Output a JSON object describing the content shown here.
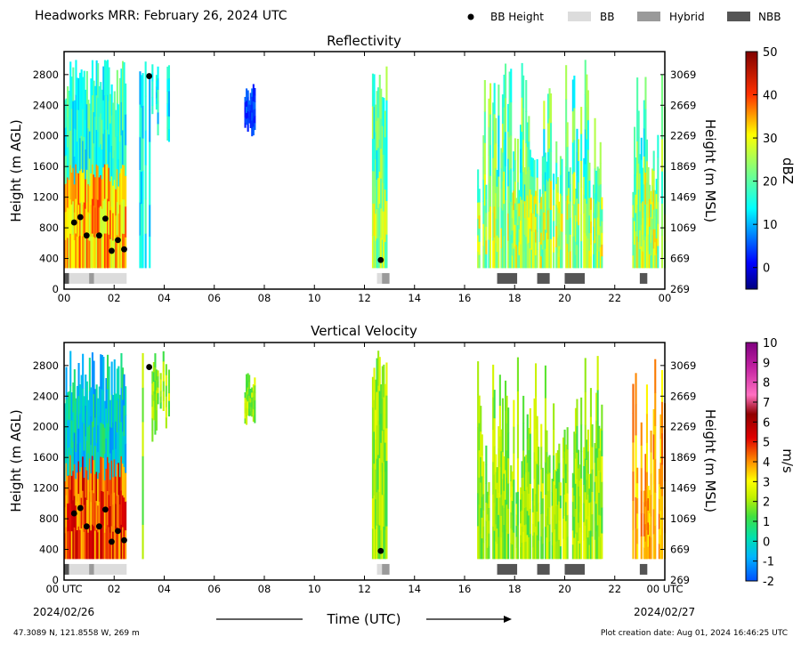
{
  "header": {
    "title": "Headworks MRR:  February 26, 2024 UTC",
    "legend": [
      {
        "label": "BB Height",
        "kind": "dot",
        "color": "#000000"
      },
      {
        "label": "BB",
        "kind": "box",
        "color": "#dcdcdc"
      },
      {
        "label": "Hybrid",
        "kind": "box",
        "color": "#9a9a9a"
      },
      {
        "label": "NBB",
        "kind": "box",
        "color": "#555555"
      }
    ]
  },
  "footer": {
    "location": "47.3089 N, 121.8558 W, 269 m",
    "creation": "Plot creation date: Aug 01, 2024 16:46:25 UTC",
    "xlabel": "Time (UTC)"
  },
  "chart_data": [
    {
      "type": "heatmap",
      "title": "Reflectivity",
      "ylabel": "Height (m AGL)",
      "y2label": "Height (m MSL)",
      "colorbar_label": "dBZ",
      "colorbar_ticks": [
        "50",
        "40",
        "30",
        "20",
        "10",
        "0"
      ],
      "colorbar_range": [
        -5,
        50
      ],
      "colormap": "jet",
      "xlim": [
        0,
        24
      ],
      "ylim": [
        0,
        3100
      ],
      "x_ticks": [
        "00",
        "02",
        "04",
        "06",
        "08",
        "10",
        "12",
        "14",
        "16",
        "18",
        "20",
        "22",
        "00"
      ],
      "y_ticks": [
        "0",
        "400",
        "800",
        "1200",
        "1600",
        "2000",
        "2400",
        "2800"
      ],
      "y2_ticks": [
        "269",
        "669",
        "1069",
        "1469",
        "1869",
        "2269",
        "2669",
        "3069"
      ],
      "bb_height_points": [
        [
          0.4,
          870
        ],
        [
          0.65,
          940
        ],
        [
          0.9,
          700
        ],
        [
          1.4,
          700
        ],
        [
          1.65,
          920
        ],
        [
          1.9,
          500
        ],
        [
          2.15,
          640
        ],
        [
          2.4,
          520
        ],
        [
          3.4,
          2780
        ],
        [
          12.65,
          380
        ]
      ],
      "bands": [
        {
          "start": 0.0,
          "end": 2.45,
          "class": "mixed",
          "description": "precipitation with reflectivity 10-35 dBZ up to 3000 m"
        },
        {
          "start": 3.0,
          "end": 4.3,
          "class": "light",
          "description": "scattered echoes 5-15 dBZ"
        },
        {
          "start": 7.2,
          "end": 7.6,
          "class": "weak",
          "description": "elevated echo 2000-2600 m near 0 dBZ"
        },
        {
          "start": 12.3,
          "end": 12.85,
          "class": "moderate",
          "description": "column 10-20 dBZ"
        },
        {
          "start": 16.5,
          "end": 21.5,
          "class": "moderate",
          "description": "streaks 10-25 dBZ"
        },
        {
          "start": 22.7,
          "end": 24.0,
          "class": "moderate",
          "description": "streaks 10-25 dBZ"
        }
      ],
      "bb_class_segments": [
        {
          "start": 0.0,
          "end": 0.2,
          "class": "NBB"
        },
        {
          "start": 0.2,
          "end": 1.0,
          "class": "BB"
        },
        {
          "start": 1.0,
          "end": 1.2,
          "class": "Hybrid"
        },
        {
          "start": 1.2,
          "end": 2.5,
          "class": "BB"
        },
        {
          "start": 12.5,
          "end": 12.7,
          "class": "BB"
        },
        {
          "start": 12.7,
          "end": 13.0,
          "class": "Hybrid"
        },
        {
          "start": 17.3,
          "end": 18.1,
          "class": "NBB"
        },
        {
          "start": 18.9,
          "end": 19.4,
          "class": "NBB"
        },
        {
          "start": 20.0,
          "end": 20.8,
          "class": "NBB"
        },
        {
          "start": 23.0,
          "end": 23.3,
          "class": "NBB"
        }
      ]
    },
    {
      "type": "heatmap",
      "title": "Vertical Velocity",
      "ylabel": "Height (m AGL)",
      "y2label": "Height (m MSL)",
      "colorbar_label": "m/s",
      "colorbar_ticks": [
        "10",
        "9",
        "8",
        "7",
        "6",
        "5",
        "4",
        "3",
        "2",
        "1",
        "0",
        "-1",
        "-2"
      ],
      "colorbar_range": [
        -2,
        10
      ],
      "colormap": "velocity",
      "xlim": [
        0,
        24
      ],
      "ylim": [
        0,
        3100
      ],
      "x_ticks": [
        "00 UTC",
        "02",
        "04",
        "06",
        "08",
        "10",
        "12",
        "14",
        "16",
        "18",
        "20",
        "22",
        "00 UTC"
      ],
      "x_date_left": "2024/02/26",
      "x_date_right": "2024/02/27",
      "y_ticks": [
        "0",
        "400",
        "800",
        "1200",
        "1600",
        "2000",
        "2400",
        "2800"
      ],
      "y2_ticks": [
        "269",
        "669",
        "1069",
        "1469",
        "1869",
        "2269",
        "2669",
        "3069"
      ],
      "bb_height_points": [
        [
          0.4,
          870
        ],
        [
          0.65,
          940
        ],
        [
          0.9,
          700
        ],
        [
          1.4,
          700
        ],
        [
          1.65,
          920
        ],
        [
          1.9,
          500
        ],
        [
          2.15,
          640
        ],
        [
          2.4,
          520
        ],
        [
          3.4,
          2780
        ],
        [
          12.65,
          380
        ]
      ],
      "bands": [
        {
          "start": 0.0,
          "end": 2.45,
          "class": "mixed",
          "description": "0-1 m/s aloft, 4-6 m/s below 1200 m"
        },
        {
          "start": 3.0,
          "end": 4.3,
          "class": "light",
          "description": "1-2 m/s"
        },
        {
          "start": 7.2,
          "end": 7.6,
          "class": "weak",
          "description": "1-2 m/s"
        },
        {
          "start": 12.3,
          "end": 12.85,
          "class": "moderate",
          "description": "1-3 m/s"
        },
        {
          "start": 16.5,
          "end": 21.5,
          "class": "moderate",
          "description": "2-4 m/s"
        },
        {
          "start": 22.7,
          "end": 24.0,
          "class": "strong",
          "description": "3-6 m/s"
        }
      ],
      "bb_class_segments": [
        {
          "start": 0.0,
          "end": 0.2,
          "class": "NBB"
        },
        {
          "start": 0.2,
          "end": 1.0,
          "class": "BB"
        },
        {
          "start": 1.0,
          "end": 1.2,
          "class": "Hybrid"
        },
        {
          "start": 1.2,
          "end": 2.5,
          "class": "BB"
        },
        {
          "start": 12.5,
          "end": 12.7,
          "class": "BB"
        },
        {
          "start": 12.7,
          "end": 13.0,
          "class": "Hybrid"
        },
        {
          "start": 17.3,
          "end": 18.1,
          "class": "NBB"
        },
        {
          "start": 18.9,
          "end": 19.4,
          "class": "NBB"
        },
        {
          "start": 20.0,
          "end": 20.8,
          "class": "NBB"
        },
        {
          "start": 23.0,
          "end": 23.3,
          "class": "NBB"
        }
      ]
    }
  ]
}
